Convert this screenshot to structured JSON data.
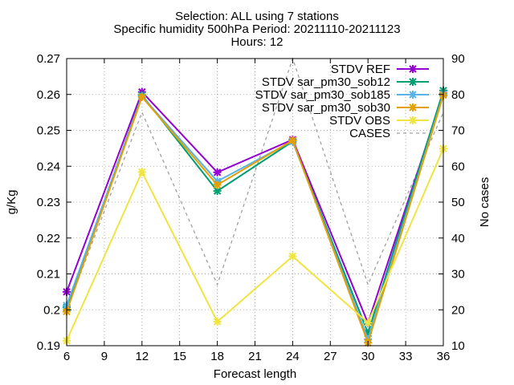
{
  "title_lines": [
    "Selection: ALL using     7 stations",
    "Specific humidity 500hPa   Period: 20211110-20211123",
    "Hours: 12"
  ],
  "chart_data": {
    "type": "line",
    "xlabel": "Forecast length",
    "ylabel": "g/Kg",
    "y2label": "No cases",
    "xlim": [
      6,
      36
    ],
    "xticks": [
      6,
      9,
      12,
      15,
      18,
      21,
      24,
      27,
      30,
      33,
      36
    ],
    "ylim": [
      0.19,
      0.27
    ],
    "yticks": [
      "0.19",
      "0.2",
      "0.21",
      "0.22",
      "0.23",
      "0.24",
      "0.25",
      "0.26",
      "0.27"
    ],
    "y2lim": [
      10,
      90
    ],
    "y2ticks": [
      10,
      20,
      30,
      40,
      50,
      60,
      70,
      80,
      90
    ],
    "grid": true,
    "legend_position": "top-right",
    "x": [
      6,
      12,
      18,
      24,
      30,
      36
    ],
    "series": [
      {
        "name": "STDV REF",
        "axis": "y1",
        "color": "#9400d3",
        "dash": false,
        "marker": "x",
        "values": [
          0.205,
          0.2607,
          0.2383,
          0.2474,
          0.1963,
          0.2603
        ]
      },
      {
        "name": "STDV sar_pm30_sob12",
        "axis": "y1",
        "color": "#009e73",
        "dash": false,
        "marker": "x",
        "values": [
          0.2007,
          0.2598,
          0.2331,
          0.2469,
          0.1935,
          0.2611
        ]
      },
      {
        "name": "STDV sar_pm30_sob185",
        "axis": "y1",
        "color": "#56b4e9",
        "dash": false,
        "marker": "x",
        "values": [
          0.2012,
          0.2595,
          0.2358,
          0.247,
          0.1918,
          0.2601
        ]
      },
      {
        "name": "STDV sar_pm30_sob30",
        "axis": "y1",
        "color": "#e69f00",
        "dash": false,
        "marker": "x",
        "values": [
          0.1995,
          0.2593,
          0.2348,
          0.2472,
          0.1908,
          0.2598
        ]
      },
      {
        "name": "STDV OBS",
        "axis": "y1",
        "color": "#f0e442",
        "dash": false,
        "marker": "x",
        "values": [
          0.1914,
          0.2384,
          0.1967,
          0.2149,
          0.1964,
          0.2449
        ]
      },
      {
        "name": "CASES",
        "axis": "y2",
        "color": "#a0a0a0",
        "dash": true,
        "marker": "none",
        "values": [
          20,
          75,
          27,
          90,
          27,
          75
        ]
      }
    ]
  }
}
